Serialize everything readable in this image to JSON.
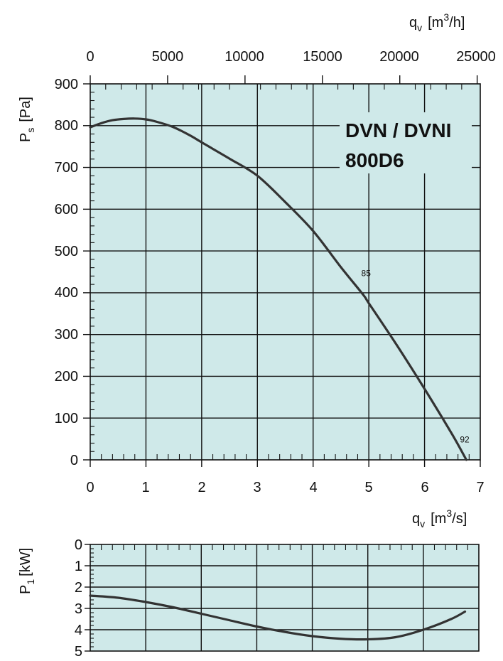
{
  "chart_data": [
    {
      "type": "line",
      "title": "DVN / DVNI",
      "subtitle": "800D6",
      "x_label": "qv [m3/s]",
      "x_label_parts": {
        "symbol": "q",
        "sub": "v",
        "unit_open": "[m",
        "sup": "3",
        "unit_close": "/s]"
      },
      "x_ticks": [
        "0",
        "1",
        "2",
        "3",
        "4",
        "5",
        "6",
        "7"
      ],
      "xlim": [
        0,
        7
      ],
      "x2_label": "qv [m3/h]",
      "x2_label_parts": {
        "symbol": "q",
        "sub": "v",
        "unit_open": "[m",
        "sup": "3",
        "unit_close": "/h]"
      },
      "x2_ticks": [
        "0",
        "5000",
        "10000",
        "15000",
        "20000",
        "25000"
      ],
      "x2lim": [
        0,
        25200
      ],
      "y_label": "Ps [Pa]",
      "y_label_parts": {
        "symbol": "P",
        "sub": "s",
        "unit": "[Pa]"
      },
      "y_ticks": [
        "0",
        "100",
        "200",
        "300",
        "400",
        "500",
        "600",
        "700",
        "800",
        "900"
      ],
      "ylim": [
        0,
        900
      ],
      "grid": true,
      "background": "#cfe9e9",
      "line_color": "#333333",
      "series": [
        {
          "x": [
            0,
            0.2,
            0.4,
            0.6,
            0.8,
            1.0,
            1.2,
            1.5,
            1.8,
            2.0,
            2.5,
            3.0,
            3.5,
            4.0,
            4.5,
            4.9,
            5.0,
            5.5,
            6.0,
            6.5,
            6.75
          ],
          "y": [
            796,
            806,
            813,
            816,
            817,
            815,
            809,
            796,
            776,
            760,
            721,
            680,
            617,
            548,
            461,
            395,
            375,
            275,
            170,
            60,
            0
          ]
        }
      ],
      "annotations": [
        {
          "text": "85",
          "x": 4.95,
          "y": 440
        },
        {
          "text": "92",
          "x": 6.72,
          "y": 42
        }
      ]
    },
    {
      "type": "line",
      "y_label": "P1 [kW]",
      "y_label_parts": {
        "symbol": "P",
        "sub": "1",
        "unit": "[kW]"
      },
      "y_ticks": [
        "0",
        "1",
        "2",
        "3",
        "4",
        "5"
      ],
      "ylim": [
        0,
        5
      ],
      "y_inverted": true,
      "xlim": [
        0,
        7
      ],
      "grid": true,
      "background": "#cfe9e9",
      "line_color": "#333333",
      "series": [
        {
          "x": [
            0,
            0.5,
            1.0,
            1.5,
            2.0,
            2.5,
            3.0,
            3.5,
            4.0,
            4.5,
            5.0,
            5.5,
            6.0,
            6.5,
            6.75
          ],
          "y": [
            2.4,
            2.5,
            2.7,
            2.95,
            3.25,
            3.55,
            3.85,
            4.1,
            4.3,
            4.42,
            4.45,
            4.35,
            4.0,
            3.5,
            3.15
          ]
        }
      ]
    }
  ]
}
